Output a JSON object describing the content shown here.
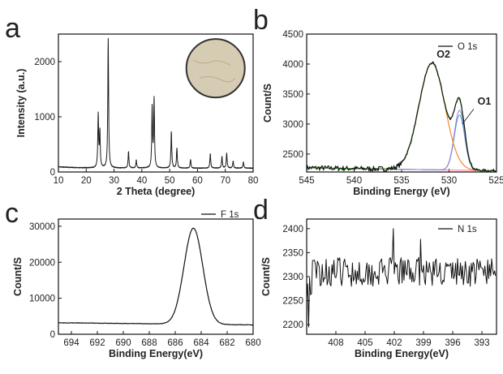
{
  "chart_data": [
    {
      "panel": "a",
      "type": "line",
      "xlabel": "2 Theta (degree)",
      "ylabel": "Intensity (a.u.)",
      "xlim": [
        10,
        80
      ],
      "ylim": [
        0,
        2500
      ],
      "xticks": [
        10,
        20,
        30,
        40,
        50,
        60,
        70,
        80
      ],
      "yticks": [
        0,
        1000,
        2000
      ],
      "baseline": 70,
      "peaks": [
        {
          "x": 24.3,
          "y": 960
        },
        {
          "x": 24.9,
          "y": 640
        },
        {
          "x": 27.9,
          "y": 2340
        },
        {
          "x": 35.2,
          "y": 300
        },
        {
          "x": 38.0,
          "y": 140
        },
        {
          "x": 43.7,
          "y": 1080
        },
        {
          "x": 44.4,
          "y": 1230
        },
        {
          "x": 50.6,
          "y": 660
        },
        {
          "x": 52.6,
          "y": 360
        },
        {
          "x": 57.5,
          "y": 160
        },
        {
          "x": 64.6,
          "y": 260
        },
        {
          "x": 68.8,
          "y": 210
        },
        {
          "x": 70.5,
          "y": 270
        },
        {
          "x": 72.8,
          "y": 130
        },
        {
          "x": 76.5,
          "y": 110
        }
      ],
      "inset": "photograph-of-sample-disc",
      "colors": {
        "line": "#1a1a1a",
        "inset_fill": "#d6ccb4",
        "inset_border": "#333333"
      }
    },
    {
      "panel": "b",
      "type": "line",
      "xlabel": "Binding Energy (eV)",
      "ylabel": "Count/S",
      "xlim": [
        545,
        525
      ],
      "ylim": [
        2200,
        4500
      ],
      "xticks": [
        545,
        540,
        535,
        530,
        525
      ],
      "yticks": [
        2500,
        3000,
        3500,
        4000,
        4500
      ],
      "legend": [
        "O 1s"
      ],
      "legend_position": "top-right",
      "annotations": [
        "O2",
        "O1"
      ],
      "background": {
        "left": 2270,
        "right": 2220
      },
      "components": [
        {
          "name": "O2",
          "center": 531.8,
          "height": 1780,
          "fwhm": 3.2,
          "color": "#f28c28"
        },
        {
          "name": "O1",
          "center": 528.9,
          "height": 1000,
          "fwhm": 1.3,
          "color": "#9a7bd0"
        }
      ],
      "colors": {
        "data": "#111111",
        "envelope": "#2ca02c",
        "background": "#ff6fa1",
        "o1_extra": "#4aa3d8"
      }
    },
    {
      "panel": "c",
      "type": "line",
      "xlabel": "Binding Energy(eV)",
      "ylabel": "Count/S",
      "xlim": [
        695,
        680
      ],
      "ylim": [
        0,
        32000
      ],
      "xticks": [
        694,
        692,
        690,
        688,
        686,
        684,
        682,
        680
      ],
      "yticks": [
        0,
        10000,
        20000,
        30000
      ],
      "legend": [
        "F 1s"
      ],
      "legend_position": "top-right",
      "peak": {
        "center": 684.6,
        "height": 26700,
        "fwhm": 1.7
      },
      "background": {
        "left": 3200,
        "right": 2600
      },
      "colors": {
        "line": "#111111"
      }
    },
    {
      "panel": "d",
      "type": "line",
      "xlabel": "Binding Energy(eV)",
      "ylabel": "Count/S",
      "xlim": [
        411,
        391.5
      ],
      "ylim": [
        2180,
        2420
      ],
      "xticks": [
        408,
        405,
        402,
        399,
        396,
        393
      ],
      "yticks": [
        2200,
        2250,
        2300,
        2350,
        2400
      ],
      "legend": [
        "N 1s"
      ],
      "legend_position": "top-right",
      "noise": {
        "mean": 2310,
        "amplitude": 30,
        "min": 2195,
        "max": 2400
      },
      "colors": {
        "line": "#111111"
      }
    }
  ],
  "panel_labels": [
    "a",
    "b",
    "c",
    "d"
  ]
}
